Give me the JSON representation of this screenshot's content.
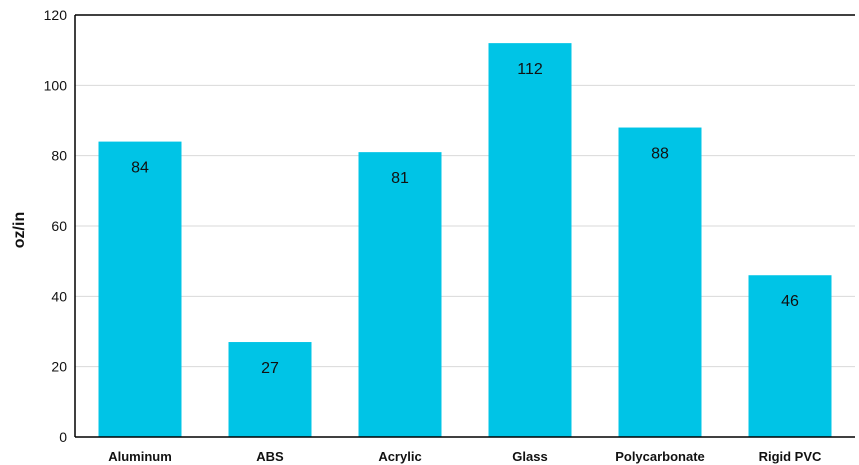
{
  "chart_data": {
    "type": "bar",
    "categories": [
      "Aluminum",
      "ABS",
      "Acrylic",
      "Glass",
      "Polycarbonate",
      "Rigid PVC"
    ],
    "values": [
      84,
      27,
      81,
      112,
      88,
      46
    ],
    "data_labels": [
      "84",
      "27",
      "81",
      "112",
      "88",
      "46"
    ],
    "title": "",
    "xlabel": "",
    "ylabel": "oz/in",
    "ylim": [
      0,
      120
    ],
    "yticks": [
      0,
      20,
      40,
      60,
      80,
      100,
      120
    ],
    "grid": true,
    "legend": "none",
    "bar_color": "#00c4e6",
    "grid_color": "#d9d9d9",
    "axis_color": "#000000"
  }
}
